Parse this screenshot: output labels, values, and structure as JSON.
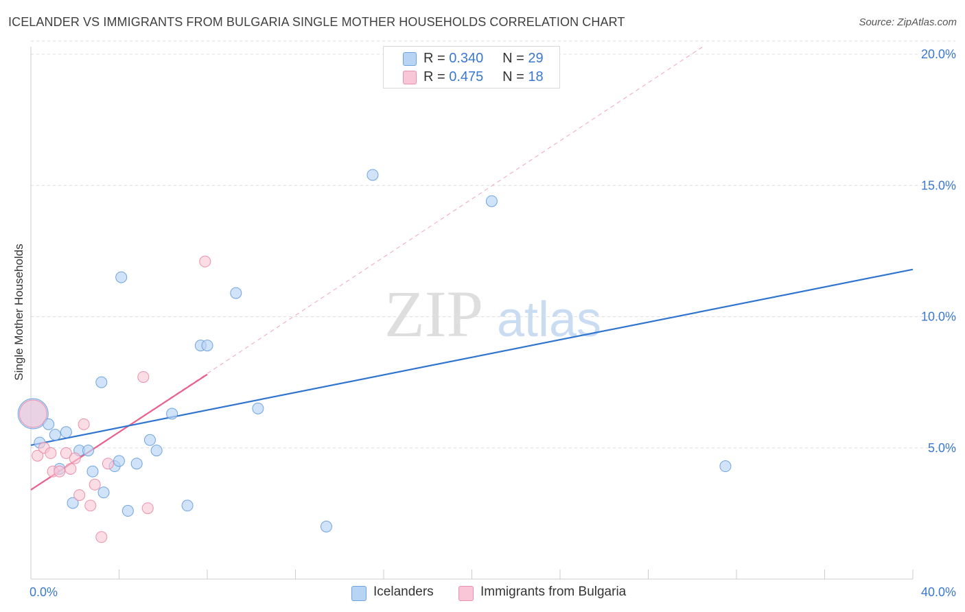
{
  "header": {
    "title": "ICELANDER VS IMMIGRANTS FROM BULGARIA SINGLE MOTHER HOUSEHOLDS CORRELATION CHART",
    "source": "Source: ZipAtlas.com"
  },
  "watermark": {
    "zip": "ZIP",
    "atlas": "atlas"
  },
  "legend_top": [
    {
      "r_label": "R =",
      "r_value": "0.340",
      "n_label": "N =",
      "n_value": "29"
    },
    {
      "r_label": "R =",
      "r_value": "0.475",
      "n_label": "N =",
      "n_value": "18"
    }
  ],
  "legend_bottom": [
    "Icelanders",
    "Immigrants from Bulgaria"
  ],
  "colors": {
    "blue_fill": "#b8d4f5",
    "blue_stroke": "#6fa3e0",
    "blue_line": "#2f74d0",
    "pink_fill": "#f8c6d6",
    "pink_stroke": "#ec8fab",
    "pink_line": "#e8608c",
    "axis_text": "#3a78d0",
    "grid": "#dcdcdc"
  },
  "chart_data": {
    "type": "scatter",
    "title": "ICELANDER VS IMMIGRANTS FROM BULGARIA SINGLE MOTHER HOUSEHOLDS CORRELATION CHART",
    "xlabel": "",
    "ylabel": "Single Mother Households",
    "xlim": [
      0,
      40
    ],
    "ylim": [
      0,
      20.5
    ],
    "x_tick_labels": [
      "0.0%",
      "40.0%"
    ],
    "y_ticks": [
      5,
      10,
      15,
      20
    ],
    "y_tick_labels": [
      "5.0%",
      "10.0%",
      "15.0%",
      "20.0%"
    ],
    "grid": true,
    "legend_position": "top-center",
    "series": [
      {
        "name": "Icelanders",
        "points": [
          [
            0.1,
            6.3
          ],
          [
            0.4,
            5.2
          ],
          [
            0.8,
            5.9
          ],
          [
            1.1,
            5.5
          ],
          [
            1.6,
            5.6
          ],
          [
            1.3,
            4.2
          ],
          [
            2.2,
            4.9
          ],
          [
            2.6,
            4.9
          ],
          [
            2.8,
            4.1
          ],
          [
            3.2,
            7.5
          ],
          [
            3.3,
            3.3
          ],
          [
            3.8,
            4.3
          ],
          [
            4.0,
            4.5
          ],
          [
            4.1,
            11.5
          ],
          [
            4.4,
            2.6
          ],
          [
            4.8,
            4.4
          ],
          [
            5.4,
            5.3
          ],
          [
            5.7,
            4.9
          ],
          [
            6.4,
            6.3
          ],
          [
            7.1,
            2.8
          ],
          [
            7.7,
            8.9
          ],
          [
            8.0,
            8.9
          ],
          [
            9.3,
            10.9
          ],
          [
            10.3,
            6.5
          ],
          [
            1.9,
            2.9
          ],
          [
            13.4,
            2.0
          ],
          [
            15.5,
            15.4
          ],
          [
            20.9,
            14.4
          ],
          [
            31.5,
            4.3
          ]
        ],
        "trend": {
          "x": [
            0,
            40
          ],
          "y": [
            5.1,
            11.8
          ]
        }
      },
      {
        "name": "Immigrants from Bulgaria",
        "points": [
          [
            0.1,
            6.3
          ],
          [
            0.3,
            4.7
          ],
          [
            0.6,
            5.0
          ],
          [
            0.9,
            4.8
          ],
          [
            1.0,
            4.1
          ],
          [
            1.6,
            4.8
          ],
          [
            1.8,
            4.2
          ],
          [
            2.0,
            4.6
          ],
          [
            2.2,
            3.2
          ],
          [
            2.4,
            5.9
          ],
          [
            2.7,
            2.8
          ],
          [
            2.9,
            3.6
          ],
          [
            3.2,
            1.6
          ],
          [
            3.5,
            4.4
          ],
          [
            5.1,
            7.7
          ],
          [
            5.3,
            2.7
          ],
          [
            7.9,
            12.1
          ],
          [
            1.3,
            4.1
          ]
        ],
        "trend": {
          "x": [
            0,
            8
          ],
          "y": [
            3.4,
            7.8
          ]
        },
        "trend_extended": {
          "x": [
            0,
            30.5
          ],
          "y": [
            3.4,
            20.3
          ]
        }
      }
    ]
  }
}
